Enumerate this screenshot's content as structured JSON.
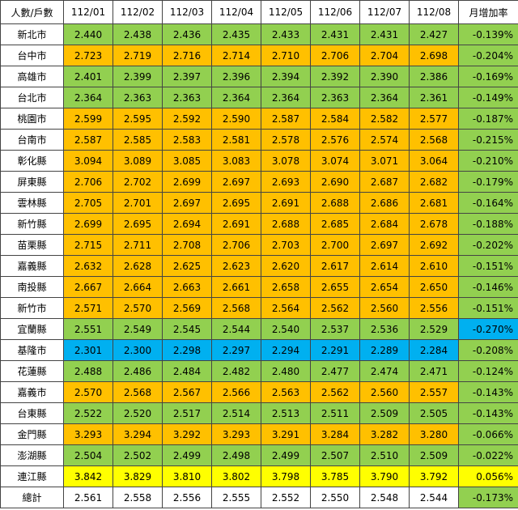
{
  "table": {
    "header": [
      "人數/戶數",
      "112/01",
      "112/02",
      "112/03",
      "112/04",
      "112/05",
      "112/06",
      "112/07",
      "112/08",
      "月增加率"
    ],
    "rows": [
      {
        "cells": [
          "新北市",
          "2.440",
          "2.438",
          "2.436",
          "2.435",
          "2.433",
          "2.431",
          "2.431",
          "2.427",
          "-0.139%"
        ],
        "color": "#92d050",
        "rate_color": "#92d050"
      },
      {
        "cells": [
          "台中市",
          "2.723",
          "2.719",
          "2.716",
          "2.714",
          "2.710",
          "2.706",
          "2.704",
          "2.698",
          "-0.204%"
        ],
        "color": "#ffc000",
        "rate_color": "#92d050"
      },
      {
        "cells": [
          "高雄市",
          "2.401",
          "2.399",
          "2.397",
          "2.396",
          "2.394",
          "2.392",
          "2.390",
          "2.386",
          "-0.169%"
        ],
        "color": "#92d050",
        "rate_color": "#92d050"
      },
      {
        "cells": [
          "台北市",
          "2.364",
          "2.363",
          "2.363",
          "2.364",
          "2.364",
          "2.363",
          "2.364",
          "2.361",
          "-0.149%"
        ],
        "color": "#92d050",
        "rate_color": "#92d050"
      },
      {
        "cells": [
          "桃園市",
          "2.599",
          "2.595",
          "2.592",
          "2.590",
          "2.587",
          "2.584",
          "2.582",
          "2.577",
          "-0.187%"
        ],
        "color": "#ffc000",
        "rate_color": "#92d050"
      },
      {
        "cells": [
          "台南市",
          "2.587",
          "2.585",
          "2.583",
          "2.581",
          "2.578",
          "2.576",
          "2.574",
          "2.568",
          "-0.215%"
        ],
        "color": "#ffc000",
        "rate_color": "#92d050"
      },
      {
        "cells": [
          "彰化縣",
          "3.094",
          "3.089",
          "3.085",
          "3.083",
          "3.078",
          "3.074",
          "3.071",
          "3.064",
          "-0.210%"
        ],
        "color": "#ffc000",
        "rate_color": "#92d050"
      },
      {
        "cells": [
          "屏東縣",
          "2.706",
          "2.702",
          "2.699",
          "2.697",
          "2.693",
          "2.690",
          "2.687",
          "2.682",
          "-0.179%"
        ],
        "color": "#ffc000",
        "rate_color": "#92d050"
      },
      {
        "cells": [
          "雲林縣",
          "2.705",
          "2.701",
          "2.697",
          "2.695",
          "2.691",
          "2.688",
          "2.686",
          "2.681",
          "-0.164%"
        ],
        "color": "#ffc000",
        "rate_color": "#92d050"
      },
      {
        "cells": [
          "新竹縣",
          "2.699",
          "2.695",
          "2.694",
          "2.691",
          "2.688",
          "2.685",
          "2.684",
          "2.678",
          "-0.188%"
        ],
        "color": "#ffc000",
        "rate_color": "#92d050"
      },
      {
        "cells": [
          "苗栗縣",
          "2.715",
          "2.711",
          "2.708",
          "2.706",
          "2.703",
          "2.700",
          "2.697",
          "2.692",
          "-0.202%"
        ],
        "color": "#ffc000",
        "rate_color": "#92d050"
      },
      {
        "cells": [
          "嘉義縣",
          "2.632",
          "2.628",
          "2.625",
          "2.623",
          "2.620",
          "2.617",
          "2.614",
          "2.610",
          "-0.151%"
        ],
        "color": "#ffc000",
        "rate_color": "#92d050"
      },
      {
        "cells": [
          "南投縣",
          "2.667",
          "2.664",
          "2.663",
          "2.661",
          "2.658",
          "2.655",
          "2.654",
          "2.650",
          "-0.146%"
        ],
        "color": "#ffc000",
        "rate_color": "#92d050"
      },
      {
        "cells": [
          "新竹市",
          "2.571",
          "2.570",
          "2.569",
          "2.568",
          "2.564",
          "2.562",
          "2.560",
          "2.556",
          "-0.151%"
        ],
        "color": "#ffc000",
        "rate_color": "#92d050"
      },
      {
        "cells": [
          "宜蘭縣",
          "2.551",
          "2.549",
          "2.545",
          "2.544",
          "2.540",
          "2.537",
          "2.536",
          "2.529",
          "-0.270%"
        ],
        "color": "#92d050",
        "rate_color": "#00b0f0"
      },
      {
        "cells": [
          "基隆市",
          "2.301",
          "2.300",
          "2.298",
          "2.297",
          "2.294",
          "2.291",
          "2.289",
          "2.284",
          "-0.208%"
        ],
        "color": "#00b0f0",
        "rate_color": "#92d050"
      },
      {
        "cells": [
          "花蓮縣",
          "2.488",
          "2.486",
          "2.484",
          "2.482",
          "2.480",
          "2.477",
          "2.474",
          "2.471",
          "-0.124%"
        ],
        "color": "#92d050",
        "rate_color": "#92d050"
      },
      {
        "cells": [
          "嘉義市",
          "2.570",
          "2.568",
          "2.567",
          "2.566",
          "2.563",
          "2.562",
          "2.560",
          "2.557",
          "-0.143%"
        ],
        "color": "#ffc000",
        "rate_color": "#92d050"
      },
      {
        "cells": [
          "台東縣",
          "2.522",
          "2.520",
          "2.517",
          "2.514",
          "2.513",
          "2.511",
          "2.509",
          "2.505",
          "-0.143%"
        ],
        "color": "#92d050",
        "rate_color": "#92d050"
      },
      {
        "cells": [
          "金門縣",
          "3.293",
          "3.294",
          "3.292",
          "3.293",
          "3.291",
          "3.284",
          "3.282",
          "3.280",
          "-0.066%"
        ],
        "color": "#ffc000",
        "rate_color": "#92d050"
      },
      {
        "cells": [
          "澎湖縣",
          "2.504",
          "2.502",
          "2.499",
          "2.498",
          "2.499",
          "2.507",
          "2.510",
          "2.509",
          "-0.022%"
        ],
        "color": "#92d050",
        "rate_color": "#92d050"
      },
      {
        "cells": [
          "連江縣",
          "3.842",
          "3.829",
          "3.810",
          "3.802",
          "3.798",
          "3.785",
          "3.790",
          "3.792",
          "0.056%"
        ],
        "color": "#ffff00",
        "rate_color": "#ffff00"
      },
      {
        "cells": [
          "總計",
          "2.561",
          "2.558",
          "2.556",
          "2.555",
          "2.552",
          "2.550",
          "2.548",
          "2.544",
          "-0.173%"
        ],
        "color": "#ffffff",
        "rate_color": "#92d050"
      }
    ]
  }
}
